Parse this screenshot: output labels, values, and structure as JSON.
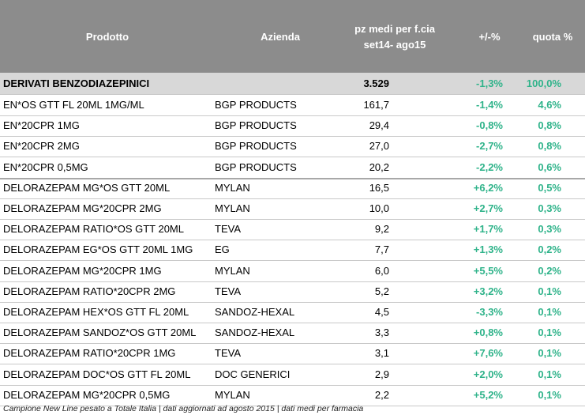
{
  "colors": {
    "header_bg": "#8c8c8c",
    "subheader_bg": "#d8d8d8",
    "accent_green": "#2fb38a"
  },
  "header": {
    "col_product": "Prodotto",
    "col_company": "Azienda",
    "col_pz_line1": "pz medi per f.cia",
    "col_pz_line2": "set14- ago15",
    "col_var": "+/-%",
    "col_share": "quota %"
  },
  "category": {
    "name": "DERIVATI BENZODIAZEPINICI",
    "pz": "3.529",
    "var": "-1,3%",
    "share": "100,0%"
  },
  "rows": [
    {
      "product": "EN*OS GTT FL 20ML 1MG/ML",
      "company": "BGP PRODUCTS",
      "pz": "161,7",
      "var": "-1,4%",
      "share": "4,6%"
    },
    {
      "product": "EN*20CPR 1MG",
      "company": "BGP PRODUCTS",
      "pz": "29,4",
      "var": "-0,8%",
      "share": "0,8%"
    },
    {
      "product": "EN*20CPR 2MG",
      "company": "BGP PRODUCTS",
      "pz": "27,0",
      "var": "-2,7%",
      "share": "0,8%"
    },
    {
      "product": "EN*20CPR 0,5MG",
      "company": "BGP PRODUCTS",
      "pz": "20,2",
      "var": "-2,2%",
      "share": "0,6%"
    },
    {
      "product": "DELORAZEPAM MG*OS GTT 20ML",
      "company": "MYLAN",
      "pz": "16,5",
      "var": "+6,2%",
      "share": "0,5%"
    },
    {
      "product": "DELORAZEPAM MG*20CPR 2MG",
      "company": "MYLAN",
      "pz": "10,0",
      "var": "+2,7%",
      "share": "0,3%"
    },
    {
      "product": "DELORAZEPAM RATIO*OS GTT 20ML",
      "company": "TEVA",
      "pz": "9,2",
      "var": "+1,7%",
      "share": "0,3%"
    },
    {
      "product": "DELORAZEPAM EG*OS GTT 20ML 1MG",
      "company": "EG",
      "pz": "7,7",
      "var": "+1,3%",
      "share": "0,2%"
    },
    {
      "product": "DELORAZEPAM MG*20CPR 1MG",
      "company": "MYLAN",
      "pz": "6,0",
      "var": "+5,5%",
      "share": "0,2%"
    },
    {
      "product": "DELORAZEPAM RATIO*20CPR 2MG",
      "company": "TEVA",
      "pz": "5,2",
      "var": "+3,2%",
      "share": "0,1%"
    },
    {
      "product": "DELORAZEPAM HEX*OS GTT FL 20ML",
      "company": "SANDOZ-HEXAL",
      "pz": "4,5",
      "var": "-3,3%",
      "share": "0,1%"
    },
    {
      "product": "DELORAZEPAM SANDOZ*OS GTT 20ML",
      "company": "SANDOZ-HEXAL",
      "pz": "3,3",
      "var": "+0,8%",
      "share": "0,1%"
    },
    {
      "product": "DELORAZEPAM RATIO*20CPR 1MG",
      "company": "TEVA",
      "pz": "3,1",
      "var": "+7,6%",
      "share": "0,1%"
    },
    {
      "product": "DELORAZEPAM DOC*OS GTT FL 20ML",
      "company": "DOC GENERICI",
      "pz": "2,9",
      "var": "+2,0%",
      "share": "0,1%"
    },
    {
      "product": "DELORAZEPAM MG*20CPR 0,5MG",
      "company": "MYLAN",
      "pz": "2,2",
      "var": "+5,2%",
      "share": "0,1%"
    }
  ],
  "footer": "Campione New Line pesato a Totale Italia | dati aggiornati ad agosto 2015 | dati medi per farmacia"
}
